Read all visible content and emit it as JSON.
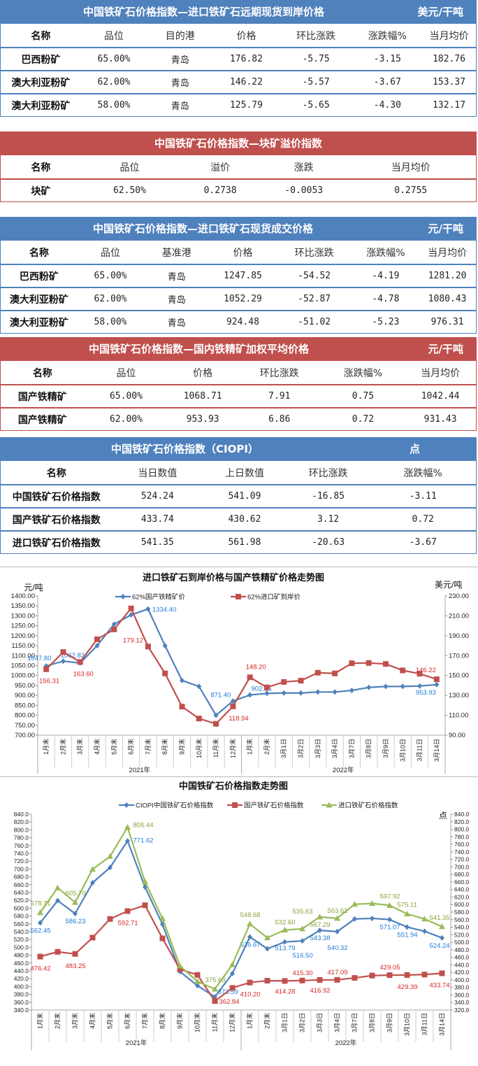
{
  "colors": {
    "blue": "#4f81bd",
    "red": "#c0504d",
    "green": "#9bbb59",
    "label_blue": "#1f7ad6",
    "label_red": "#d62728",
    "label_green": "#8aa33a"
  },
  "tables": [
    {
      "title": "中国铁矿石价格指数—进口铁矿石远期现货到岸价格",
      "unit": "美元/干吨",
      "color": "blue",
      "columns": [
        "名称",
        "品位",
        "目的港",
        "价格",
        "环比涨跌",
        "涨跌幅%",
        "当月均价"
      ],
      "rows": [
        [
          "巴西粉矿",
          "65.00%",
          "青岛",
          "176.82",
          "-5.75",
          "-3.15",
          "182.76"
        ],
        [
          "澳大利亚粉矿",
          "62.00%",
          "青岛",
          "146.22",
          "-5.57",
          "-3.67",
          "153.37"
        ],
        [
          "澳大利亚粉矿",
          "58.00%",
          "青岛",
          "125.79",
          "-5.65",
          "-4.30",
          "132.17"
        ]
      ]
    },
    {
      "title": "中国铁矿石价格指数—块矿溢价指数",
      "unit": "",
      "color": "red",
      "columns": [
        "名称",
        "品位",
        "溢价",
        "涨跌",
        "当月均价"
      ],
      "rows": [
        [
          "块矿",
          "62.50%",
          "0.2738",
          "-0.0053",
          "0.2755"
        ]
      ]
    },
    {
      "title": "中国铁矿石价格指数—进口铁矿石现货成交价格",
      "unit": "元/干吨",
      "color": "blue",
      "columns": [
        "名称",
        "品位",
        "基准港",
        "价格",
        "环比涨跌",
        "涨跌幅%",
        "当月均价"
      ],
      "rows": [
        [
          "巴西粉矿",
          "65.00%",
          "青岛",
          "1247.85",
          "-54.52",
          "-4.19",
          "1281.20"
        ],
        [
          "澳大利亚粉矿",
          "62.00%",
          "青岛",
          "1052.29",
          "-52.87",
          "-4.78",
          "1080.43"
        ],
        [
          "澳大利亚粉矿",
          "58.00%",
          "青岛",
          "924.48",
          "-51.02",
          "-5.23",
          "976.31"
        ]
      ]
    },
    {
      "title": "中国铁矿石价格指数—国内铁精矿加权平均价格",
      "unit": "元/干吨",
      "color": "red",
      "columns": [
        "名称",
        "品位",
        "价格",
        "环比涨跌",
        "涨跌幅%",
        "当月均价"
      ],
      "rows": [
        [
          "国产铁精矿",
          "65.00%",
          "1068.71",
          "7.91",
          "0.75",
          "1042.44"
        ],
        [
          "国产铁精矿",
          "62.00%",
          "953.93",
          "6.86",
          "0.72",
          "931.43"
        ]
      ]
    },
    {
      "title": "中国铁矿石价格指数（CIOPI）",
      "unit": "点",
      "color": "blue",
      "columns": [
        "名称",
        "当日数值",
        "上日数值",
        "环比涨跌",
        "涨跌幅%"
      ],
      "rows": [
        [
          "中国铁矿石价格指数",
          "524.24",
          "541.09",
          "-16.85",
          "-3.11"
        ],
        [
          "国产铁矿石价格指数",
          "433.74",
          "430.62",
          "3.12",
          "0.72"
        ],
        [
          "进口铁矿石价格指数",
          "541.35",
          "561.98",
          "-20.63",
          "-3.67"
        ]
      ]
    }
  ],
  "chart_data": [
    {
      "type": "line",
      "title": "进口铁矿石到岸价格与国产铁精矿价格走势图",
      "ylabel": "元/吨",
      "y2label": "美元/吨",
      "ylim": [
        700,
        1400
      ],
      "y2lim": [
        90,
        230
      ],
      "grid": false,
      "legend": "top",
      "yticks": [
        "700.00",
        "750.00",
        "800.00",
        "850.00",
        "900.00",
        "950.00",
        "1000.00",
        "1050.00",
        "1100.00",
        "1150.00",
        "1200.00",
        "1250.00",
        "1300.00",
        "1350.00",
        "1400.00"
      ],
      "y2ticks": [
        "90.00",
        "110.00",
        "130.00",
        "150.00",
        "170.00",
        "190.00",
        "210.00",
        "230.00"
      ],
      "categories": [
        "1月末",
        "2月末",
        "3月末",
        "4月末",
        "5月末",
        "6月末",
        "7月末",
        "8月末",
        "9月末",
        "10月末",
        "11月末",
        "12月末",
        "1月末",
        "2月末",
        "3月1日",
        "3月2日",
        "3月3日",
        "3月4日",
        "3月7日",
        "3月8日",
        "3月9日",
        "3月10日",
        "3月11日",
        "3月14日"
      ],
      "groups": [
        {
          "label": "2021年",
          "count": 12
        },
        {
          "label": "2022年",
          "count": 12
        }
      ],
      "series": [
        {
          "name": "62%国产铁精矿价",
          "color": "blue",
          "axis": "left",
          "marker": "diamond",
          "values": [
            1047.8,
            1072,
            1062.82,
            1150,
            1258,
            1305,
            1334.4,
            1150,
            975,
            945,
            800,
            871.4,
            902.16,
            910,
            912,
            912,
            917,
            917,
            925,
            940,
            945,
            945,
            947.07,
            953.93
          ],
          "labels": [
            {
              "i": 0,
              "text": "1047.80"
            },
            {
              "i": 2,
              "text": "1062.82"
            },
            {
              "i": 6,
              "text": "1334.40"
            },
            {
              "i": 11,
              "text": "871.40"
            },
            {
              "i": 12,
              "text": "902.16"
            },
            {
              "i": 23,
              "text": "953.93"
            }
          ]
        },
        {
          "name": "62%进口矿到岸价",
          "color": "red",
          "axis": "right",
          "marker": "square",
          "values": [
            156.31,
            173.6,
            163.6,
            186.4,
            196.4,
            217.5,
            179.12,
            152.1,
            118.7,
            106.7,
            101.4,
            118.94,
            148.2,
            138.0,
            143.5,
            144.8,
            152.8,
            152.1,
            162.3,
            162.6,
            161.6,
            155.1,
            151.79,
            146.22
          ],
          "labels": [
            {
              "i": 0,
              "text": "156.31"
            },
            {
              "i": 2,
              "text": "163.60"
            },
            {
              "i": 6,
              "text": "179.12"
            },
            {
              "i": 11,
              "text": "118.94"
            },
            {
              "i": 12,
              "text": "148.20"
            },
            {
              "i": 23,
              "text": "146.22"
            }
          ]
        }
      ]
    },
    {
      "type": "line",
      "title": "中国铁矿石价格指数走势图",
      "y2label": "点",
      "ylim": [
        340,
        840
      ],
      "y2lim": [
        320,
        840
      ],
      "grid": false,
      "legend": "top",
      "yticks": [
        "340.0",
        "360.0",
        "380.0",
        "400.0",
        "420.0",
        "440.0",
        "460.0",
        "480.0",
        "500.0",
        "520.0",
        "540.0",
        "560.0",
        "580.0",
        "600.0",
        "620.0",
        "640.0",
        "660.0",
        "680.0",
        "700.0",
        "720.0",
        "740.0",
        "760.0",
        "780.0",
        "800.0",
        "820.0",
        "840.0"
      ],
      "y2ticks": [
        "320.0",
        "340.0",
        "360.0",
        "380.0",
        "400.0",
        "420.0",
        "440.0",
        "460.0",
        "480.0",
        "500.0",
        "520.0",
        "540.0",
        "560.0",
        "580.0",
        "600.0",
        "620.0",
        "640.0",
        "660.0",
        "680.0",
        "700.0",
        "720.0",
        "740.0",
        "760.0",
        "780.0",
        "800.0",
        "820.0",
        "840.0"
      ],
      "categories": [
        "1月末",
        "2月末",
        "3月末",
        "4月末",
        "5月末",
        "6月末",
        "7月末",
        "8月末",
        "9月末",
        "10月末",
        "11月末",
        "12月末",
        "1月末",
        "2月末",
        "3月1日",
        "3月2日",
        "3月3日",
        "3月4日",
        "3月7日",
        "3月8日",
        "3月9日",
        "3月10日",
        "3月11日",
        "3月14日"
      ],
      "groups": [
        {
          "label": "2021年",
          "count": 12
        },
        {
          "label": "2022年",
          "count": 12
        }
      ],
      "series": [
        {
          "name": "CIOPI中国铁矿石价格指数",
          "color": "blue",
          "axis": "left",
          "marker": "diamond",
          "values": [
            562.45,
            619.4,
            586.23,
            665,
            703.9,
            771.62,
            654,
            558.8,
            438,
            402.4,
            373.59,
            433,
            526.67,
            496.4,
            513.79,
            516.5,
            543.38,
            540.32,
            572.5,
            574,
            571.07,
            551.94,
            541.09,
            524.24
          ],
          "labels": [
            {
              "i": 0,
              "text": "562.45"
            },
            {
              "i": 2,
              "text": "586.23"
            },
            {
              "i": 5,
              "text": "771.62"
            },
            {
              "i": 10,
              "text": "373.59"
            },
            {
              "i": 12,
              "text": "526.67"
            },
            {
              "i": 14,
              "text": "513.79"
            },
            {
              "i": 15,
              "text": "516.50"
            },
            {
              "i": 16,
              "text": "543.38"
            },
            {
              "i": 17,
              "text": "540.32"
            },
            {
              "i": 20,
              "text": "571.07"
            },
            {
              "i": 21,
              "text": "551.94"
            },
            {
              "i": 23,
              "text": "524.24"
            }
          ]
        },
        {
          "name": "国产铁矿石价格指数",
          "color": "red",
          "axis": "left",
          "marker": "square",
          "values": [
            476.42,
            488.6,
            483.25,
            524.9,
            572.5,
            592.71,
            607.5,
            523,
            444,
            429.8,
            362.84,
            396.5,
            410.2,
            415,
            414.28,
            415.3,
            416.92,
            417.09,
            422,
            428,
            429.05,
            429.39,
            430.62,
            433.74
          ],
          "labels": [
            {
              "i": 0,
              "text": "476.42"
            },
            {
              "i": 2,
              "text": "483.25"
            },
            {
              "i": 5,
              "text": "592.71"
            },
            {
              "i": 10,
              "text": "362.84"
            },
            {
              "i": 12,
              "text": "410.20"
            },
            {
              "i": 14,
              "text": "414.28"
            },
            {
              "i": 15,
              "text": "415.30"
            },
            {
              "i": 16,
              "text": "416.92"
            },
            {
              "i": 17,
              "text": "417.09"
            },
            {
              "i": 20,
              "text": "429.05"
            },
            {
              "i": 21,
              "text": "429.39"
            },
            {
              "i": 23,
              "text": "433.74"
            }
          ]
        },
        {
          "name": "进口铁矿石价格指数",
          "color": "green",
          "axis": "right",
          "marker": "triangle",
          "values": [
            578.71,
            644.6,
            605.7,
            694,
            728,
            805.44,
            661,
            563,
            437,
            396,
            375.63,
            440.5,
            548.68,
            512,
            532.6,
            535.63,
            567.29,
            563.61,
            601,
            603,
            597.92,
            575.11,
            561.98,
            541.35
          ],
          "labels": [
            {
              "i": 0,
              "text": "578.71"
            },
            {
              "i": 2,
              "text": "605.70"
            },
            {
              "i": 5,
              "text": "805.44"
            },
            {
              "i": 10,
              "text": "375.63"
            },
            {
              "i": 12,
              "text": "548.68"
            },
            {
              "i": 14,
              "text": "532.60"
            },
            {
              "i": 15,
              "text": "535.63"
            },
            {
              "i": 16,
              "text": "567.29"
            },
            {
              "i": 17,
              "text": "563.61"
            },
            {
              "i": 20,
              "text": "597.92"
            },
            {
              "i": 21,
              "text": "575.11"
            },
            {
              "i": 23,
              "text": "541.35"
            }
          ]
        }
      ]
    }
  ]
}
